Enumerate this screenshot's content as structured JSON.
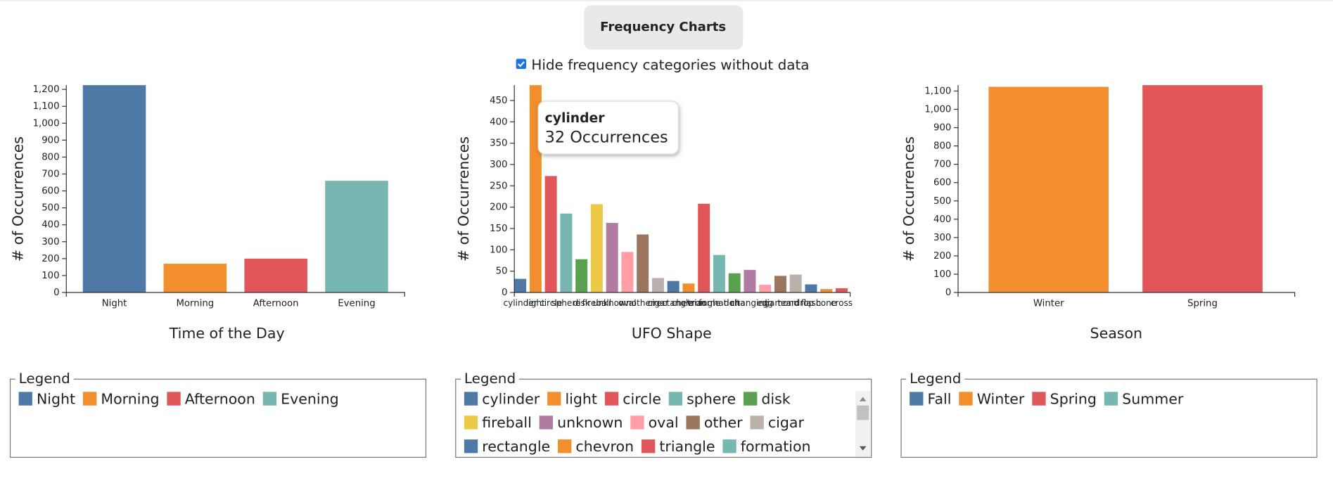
{
  "header": {
    "button": "Frequency Charts",
    "checkbox_label": "Hide frequency categories without data"
  },
  "tooltip": {
    "title": "cylinder",
    "text": "32 Occurrences"
  },
  "chart_data": [
    {
      "type": "bar",
      "xlabel": "Time of the Day",
      "ylabel": "# of Occurrences",
      "categories": [
        "Night",
        "Morning",
        "Afternoon",
        "Evening"
      ],
      "values": [
        1225,
        170,
        200,
        660
      ],
      "colors": [
        "#4e79a7",
        "#f28e2b",
        "#e15759",
        "#76b7b2"
      ],
      "ylim": [
        0,
        1225
      ],
      "yticks": [
        0,
        100,
        200,
        300,
        400,
        500,
        600,
        700,
        800,
        900,
        {
          "value": 1000,
          "label": "1,000"
        },
        {
          "value": 1100,
          "label": "1,100"
        },
        {
          "value": 1200,
          "label": "1,200"
        }
      ],
      "legend": {
        "title": "Legend",
        "items": [
          {
            "name": "Night",
            "color": "#4e79a7"
          },
          {
            "name": "Morning",
            "color": "#f28e2b"
          },
          {
            "name": "Afternoon",
            "color": "#e15759"
          },
          {
            "name": "Evening",
            "color": "#76b7b2"
          }
        ]
      }
    },
    {
      "type": "bar",
      "xlabel": "UFO Shape",
      "ylabel": "# of Occurrences",
      "categories": [
        "cylinder",
        "light",
        "circle",
        "sphere",
        "disk",
        "fireball",
        "unknown",
        "oval",
        "other",
        "cigar",
        "rectangle",
        "chevron",
        "triangle",
        "formation",
        "delta",
        "changing",
        "egg",
        "diamond",
        "teardrop",
        "flash",
        "cone",
        "cross"
      ],
      "values": [
        32,
        486,
        273,
        185,
        78,
        207,
        163,
        95,
        136,
        34,
        27,
        21,
        208,
        88,
        45,
        53,
        18,
        39,
        42,
        19,
        8,
        10
      ],
      "colors": [
        "#4e79a7",
        "#f28e2b",
        "#e15759",
        "#76b7b2",
        "#59a14f",
        "#edc948",
        "#b07aa1",
        "#ff9da7",
        "#9c755f",
        "#bab0ac",
        "#4e79a7",
        "#f28e2b",
        "#e15759",
        "#76b7b2",
        "#59a14f",
        "#b07aa1",
        "#ff9da7",
        "#9c755f",
        "#bab0ac",
        "#4e79a7",
        "#f28e2b",
        "#e15759"
      ],
      "ylim": [
        0,
        486
      ],
      "yticks": [
        0,
        50,
        100,
        150,
        200,
        250,
        300,
        350,
        400,
        450
      ],
      "legend": {
        "title": "Legend",
        "items": [
          {
            "name": "cylinder",
            "color": "#4e79a7"
          },
          {
            "name": "light",
            "color": "#f28e2b"
          },
          {
            "name": "circle",
            "color": "#e15759"
          },
          {
            "name": "sphere",
            "color": "#76b7b2"
          },
          {
            "name": "disk",
            "color": "#59a14f"
          },
          {
            "name": "fireball",
            "color": "#edc948"
          },
          {
            "name": "unknown",
            "color": "#b07aa1"
          },
          {
            "name": "oval",
            "color": "#ff9da7"
          },
          {
            "name": "other",
            "color": "#9c755f"
          },
          {
            "name": "cigar",
            "color": "#bab0ac"
          },
          {
            "name": "rectangle",
            "color": "#4e79a7"
          },
          {
            "name": "chevron",
            "color": "#f28e2b"
          },
          {
            "name": "triangle",
            "color": "#e15759"
          },
          {
            "name": "formation",
            "color": "#76b7b2"
          }
        ]
      }
    },
    {
      "type": "bar",
      "xlabel": "Season",
      "ylabel": "# of Occurrences",
      "categories": [
        "Winter",
        "Spring"
      ],
      "values": [
        1123,
        1132
      ],
      "colors": [
        "#f28e2b",
        "#e15759"
      ],
      "ylim": [
        0,
        1132
      ],
      "yticks": [
        0,
        100,
        200,
        300,
        400,
        500,
        600,
        700,
        800,
        900,
        {
          "value": 1000,
          "label": "1,000"
        },
        {
          "value": 1100,
          "label": "1,100"
        }
      ],
      "legend": {
        "title": "Legend",
        "items": [
          {
            "name": "Fall",
            "color": "#4e79a7"
          },
          {
            "name": "Winter",
            "color": "#f28e2b"
          },
          {
            "name": "Spring",
            "color": "#e15759"
          },
          {
            "name": "Summer",
            "color": "#76b7b2"
          }
        ]
      }
    }
  ]
}
